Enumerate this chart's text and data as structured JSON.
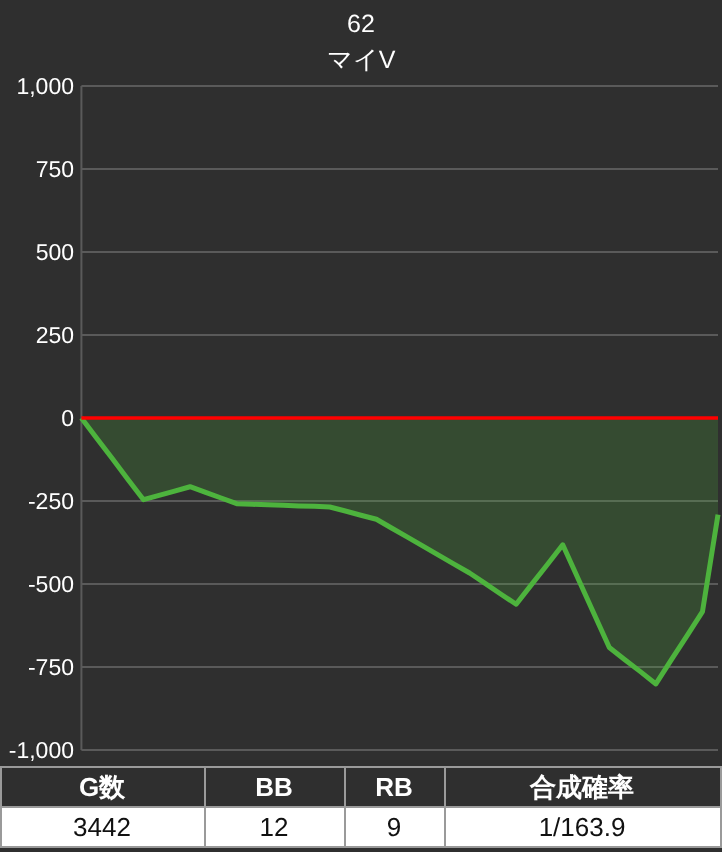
{
  "chart_data": {
    "type": "area",
    "title": "62",
    "subtitle": "マイV",
    "categories": [
      null,
      null,
      null,
      null,
      null,
      null,
      null,
      null,
      null,
      null,
      null,
      null,
      null,
      null,
      null,
      null,
      null,
      null,
      null,
      null,
      null,
      null,
      null,
      null,
      null,
      null,
      null,
      null,
      null,
      null,
      null,
      null,
      null,
      null,
      null,
      null,
      null,
      null,
      null,
      null,
      null,
      null
    ],
    "series": [
      {
        "color": "#4db33d",
        "values": [
          0,
          -62,
          -123,
          -185,
          -246,
          -233,
          -220,
          -207,
          -224,
          -241,
          -258,
          -260,
          -261,
          -263,
          -265,
          -266,
          -268,
          -280,
          -293,
          -305,
          -332,
          -359,
          -386,
          -413,
          -440,
          -467,
          -498,
          -530,
          -561,
          -501,
          -442,
          -382,
          -485,
          -588,
          -691,
          -728,
          -764,
          -801,
          -728,
          -656,
          -583,
          -291
        ]
      }
    ],
    "ylim": [
      -1000,
      1000
    ],
    "yticks": [
      {
        "value": -1000,
        "label": "-1,000"
      },
      -750,
      -500,
      -250,
      0,
      250,
      500,
      750,
      {
        "value": 1000,
        "label": "1,000"
      }
    ],
    "grid": "y",
    "marker": "none",
    "line_style": "solid",
    "tick_labels": "y",
    "ref_lines": [
      {
        "axis": "y",
        "value": 0,
        "color": "#ff0000"
      }
    ],
    "annotations": [
      "G数",
      "BB",
      "RB",
      "合成確率",
      "3442",
      "12",
      "9",
      "1/163.9"
    ]
  }
}
